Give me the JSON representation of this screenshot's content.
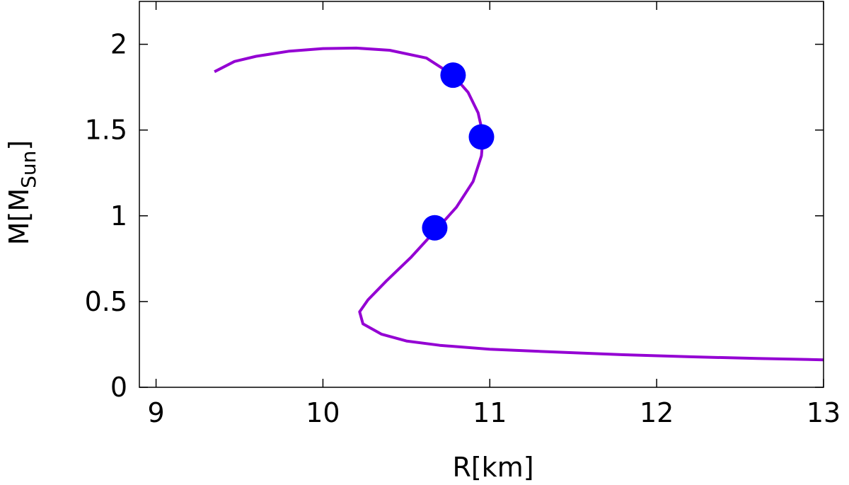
{
  "chart_data": {
    "type": "line",
    "title": "",
    "xlabel": "R[km]",
    "ylabel_main": "M[M",
    "ylabel_sub": "Sun",
    "ylabel_close": "]",
    "xlim": [
      8.9,
      13
    ],
    "ylim": [
      0,
      2.25
    ],
    "x_ticks": [
      9,
      10,
      11,
      12,
      13
    ],
    "x_tick_labels": [
      "9",
      "10",
      "11",
      "12",
      "13"
    ],
    "y_ticks": [
      0,
      0.5,
      1,
      1.5,
      2
    ],
    "y_tick_labels": [
      "0",
      "0.5",
      "1",
      "1.5",
      "2"
    ],
    "grid": false,
    "series": [
      {
        "color": "#9400d3",
        "points": [
          [
            13.0,
            0.16
          ],
          [
            12.6,
            0.168
          ],
          [
            12.2,
            0.178
          ],
          [
            11.8,
            0.19
          ],
          [
            11.4,
            0.205
          ],
          [
            11.0,
            0.222
          ],
          [
            10.7,
            0.245
          ],
          [
            10.5,
            0.27
          ],
          [
            10.35,
            0.31
          ],
          [
            10.24,
            0.37
          ],
          [
            10.22,
            0.44
          ],
          [
            10.27,
            0.51
          ],
          [
            10.38,
            0.62
          ],
          [
            10.53,
            0.76
          ],
          [
            10.68,
            0.92
          ],
          [
            10.8,
            1.05
          ],
          [
            10.9,
            1.2
          ],
          [
            10.95,
            1.35
          ],
          [
            10.96,
            1.47
          ],
          [
            10.93,
            1.6
          ],
          [
            10.87,
            1.72
          ],
          [
            10.78,
            1.82
          ],
          [
            10.62,
            1.92
          ],
          [
            10.4,
            1.965
          ],
          [
            10.2,
            1.978
          ],
          [
            10.0,
            1.975
          ],
          [
            9.8,
            1.96
          ],
          [
            9.6,
            1.93
          ],
          [
            9.47,
            1.9
          ],
          [
            9.35,
            1.84
          ]
        ]
      }
    ],
    "markers": {
      "color": "#0000ff",
      "points": [
        [
          10.67,
          0.93
        ],
        [
          10.95,
          1.46
        ],
        [
          10.78,
          1.82
        ]
      ]
    }
  }
}
